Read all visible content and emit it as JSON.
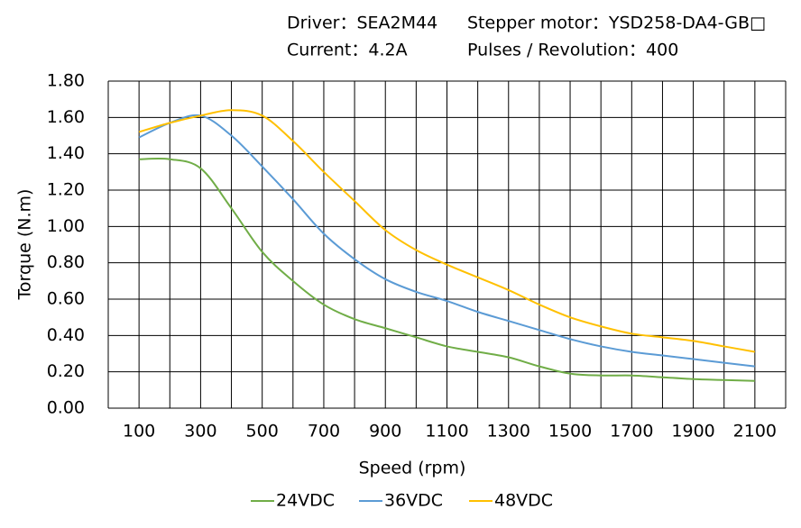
{
  "chart_data": {
    "type": "line",
    "header": [
      "Driver：SEA2M44",
      "Stepper motor：YSD258-DA4-GB□",
      "Current：4.2A",
      "Pulses / Revolution：400"
    ],
    "xlabel": "Speed (rpm)",
    "ylabel": "Torque (N.m)",
    "x": [
      100,
      200,
      300,
      400,
      500,
      600,
      700,
      800,
      900,
      1000,
      1100,
      1200,
      1300,
      1400,
      1500,
      1600,
      1700,
      1800,
      1900,
      2000,
      2100
    ],
    "series": [
      {
        "name": "24VDC",
        "color": "#70ad47",
        "values": [
          1.37,
          1.37,
          1.32,
          1.1,
          0.86,
          0.7,
          0.57,
          0.49,
          0.44,
          0.39,
          0.34,
          0.31,
          0.28,
          0.23,
          0.19,
          0.18,
          0.18,
          0.17,
          0.16,
          0.155,
          0.15
        ]
      },
      {
        "name": "36VDC",
        "color": "#5b9bd5",
        "values": [
          1.49,
          1.57,
          1.61,
          1.5,
          1.33,
          1.15,
          0.96,
          0.82,
          0.71,
          0.64,
          0.59,
          0.53,
          0.48,
          0.43,
          0.38,
          0.34,
          0.31,
          0.29,
          0.27,
          0.25,
          0.23
        ]
      },
      {
        "name": "48VDC",
        "color": "#ffc000",
        "values": [
          1.52,
          1.57,
          1.61,
          1.64,
          1.61,
          1.47,
          1.3,
          1.14,
          0.98,
          0.87,
          0.79,
          0.72,
          0.65,
          0.57,
          0.5,
          0.45,
          0.41,
          0.39,
          0.37,
          0.34,
          0.31
        ]
      }
    ],
    "xlim": [
      0,
      2200
    ],
    "xticks": [
      100,
      300,
      500,
      700,
      900,
      1100,
      1300,
      1500,
      1700,
      1900,
      2100
    ],
    "xgrid": [
      0,
      100,
      200,
      300,
      400,
      500,
      600,
      700,
      800,
      900,
      1000,
      1100,
      1200,
      1300,
      1400,
      1500,
      1600,
      1700,
      1800,
      1900,
      2000,
      2100,
      2200
    ],
    "ylim": [
      0,
      1.8
    ],
    "yticks": [
      {
        "value": 0,
        "label": "0.00"
      },
      {
        "value": 0.2,
        "label": "0.20"
      },
      {
        "value": 0.4,
        "label": "0.40"
      },
      {
        "value": 0.6,
        "label": "0.60"
      },
      {
        "value": 0.8,
        "label": "0.80"
      },
      {
        "value": 1.0,
        "label": "1.00"
      },
      {
        "value": 1.2,
        "label": "1.20"
      },
      {
        "value": 1.4,
        "label": "1.40"
      },
      {
        "value": 1.6,
        "label": "1.60"
      },
      {
        "value": 1.8,
        "label": "1.80"
      }
    ],
    "grid": true,
    "legend": "bottom"
  }
}
